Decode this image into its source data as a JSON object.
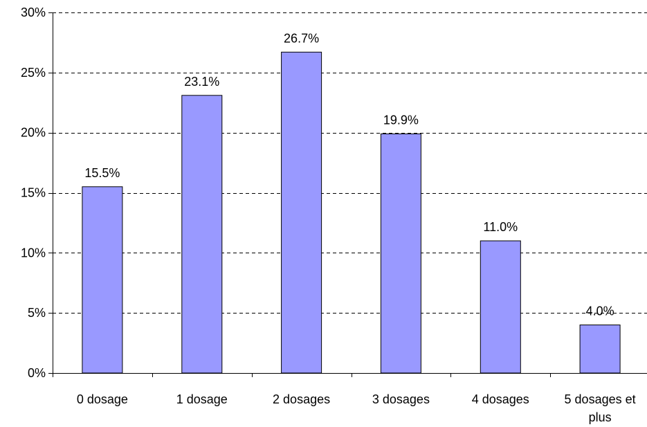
{
  "chart_data": {
    "type": "bar",
    "categories": [
      [
        "0 dosage"
      ],
      [
        "1 dosage"
      ],
      [
        "2 dosages"
      ],
      [
        "3 dosages"
      ],
      [
        "4 dosages"
      ],
      [
        "5 dosages et",
        "plus"
      ]
    ],
    "values": [
      15.5,
      23.1,
      26.7,
      19.9,
      11.0,
      4.0
    ],
    "data_labels": [
      "15.5%",
      "23.1%",
      "26.7%",
      "19.9%",
      "11.0%",
      "4.0%"
    ],
    "y_ticks": [
      0,
      5,
      10,
      15,
      20,
      25,
      30
    ],
    "y_tick_labels": [
      "0%",
      "5%",
      "10%",
      "15%",
      "20%",
      "25%",
      "30%"
    ],
    "ylim": [
      0,
      30
    ],
    "grid": "horizontal-dashed",
    "legend": "none",
    "colors": {
      "bar_fill": "#9999ff",
      "bar_stroke": "#000000",
      "grid": "#000000",
      "axis": "#000000"
    }
  }
}
